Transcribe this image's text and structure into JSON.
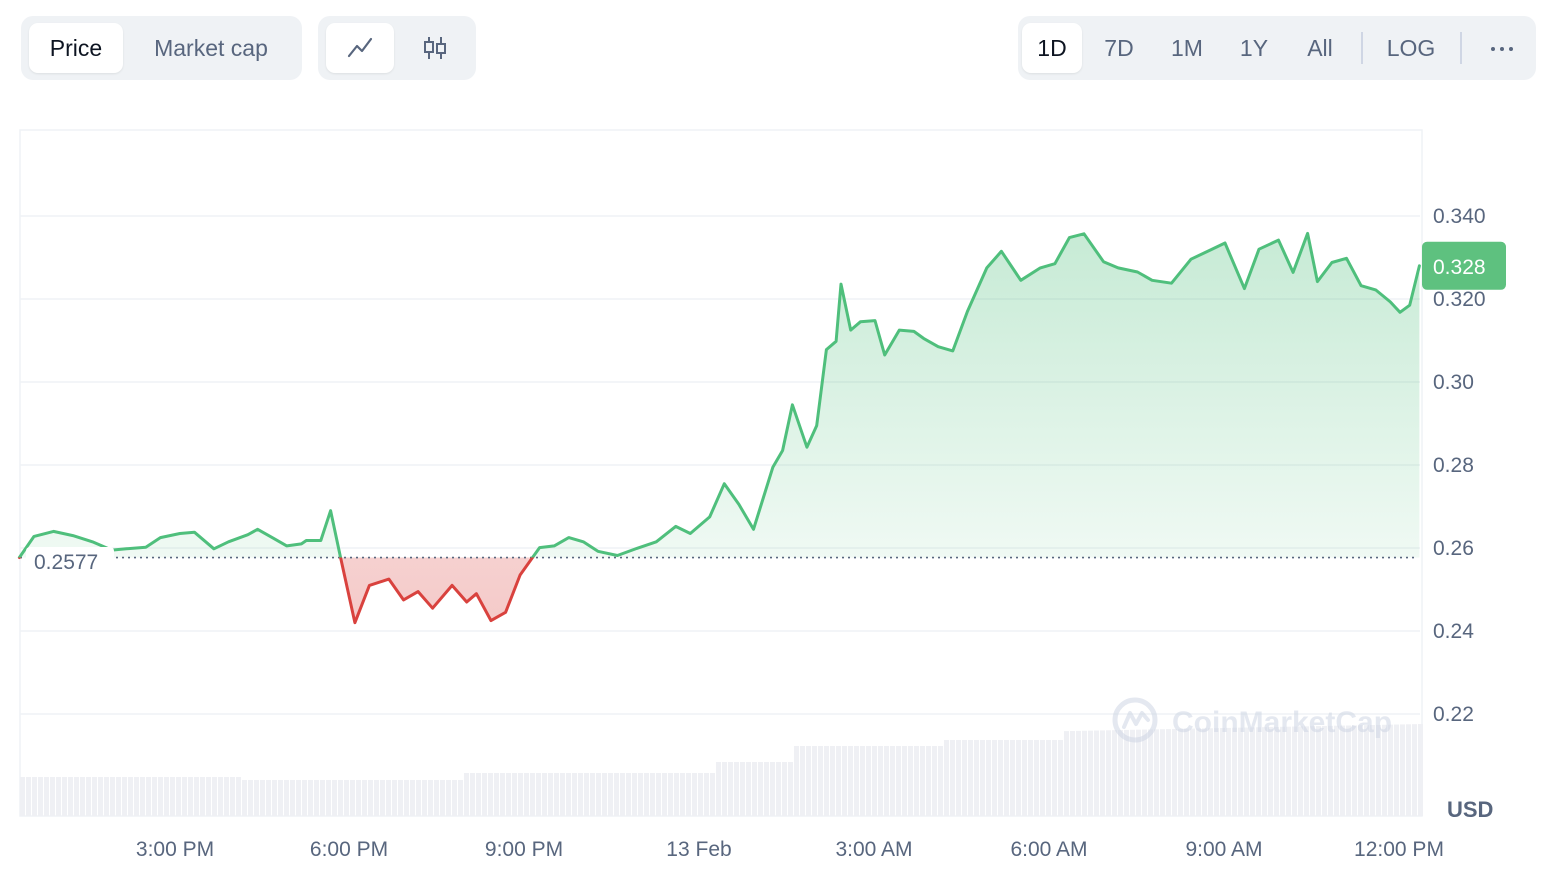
{
  "toolbar": {
    "data_tabs": [
      "Price",
      "Market cap"
    ],
    "active_data_tab": "Price",
    "chart_style_icons": [
      "line-chart-icon",
      "candlestick-icon"
    ],
    "active_chart_style": "line-chart-icon",
    "ranges": [
      "1D",
      "7D",
      "1M",
      "1Y",
      "All"
    ],
    "active_range": "1D",
    "log_label": "LOG",
    "more_icon": "more-horizontal-icon"
  },
  "watermark": "CoinMarketCap",
  "colors": {
    "up": "#4fbf7c",
    "down": "#d9423e",
    "price_badge": "#5ec17f",
    "grid": "#eff2f5",
    "volume": "#eff0f4"
  },
  "chart_data": {
    "type": "line",
    "xlabel": "",
    "ylabel": "",
    "currency": "USD",
    "x_ticks": [
      "3:00 PM",
      "6:00 PM",
      "9:00 PM",
      "13 Feb",
      "3:00 AM",
      "6:00 AM",
      "9:00 AM",
      "12:00 PM"
    ],
    "y_ticks": [
      "0.340",
      "0.320",
      "0.30",
      "0.28",
      "0.26",
      "0.24",
      "0.22"
    ],
    "ylim": [
      0.2,
      0.36
    ],
    "reference_price": 0.2577,
    "reference_label": "0.2577",
    "current_price": 0.328,
    "current_label": "0.328",
    "grid": true,
    "volume_bars": "light-grey-area-at-bottom",
    "series": [
      {
        "x": [
          "12:20 PM",
          "12:35 PM",
          "12:55 PM",
          "1:15 PM",
          "1:35 PM",
          "1:55 PM",
          "2:10 PM",
          "2:30 PM",
          "2:45 PM",
          "3:05 PM",
          "3:20 PM",
          "3:40 PM",
          "3:55 PM",
          "4:15 PM",
          "4:25 PM",
          "4:40 PM",
          "4:55 PM",
          "5:10 PM",
          "5:15 PM",
          "5:30 PM",
          "5:40 PM",
          "5:50 PM",
          "6:05 PM",
          "6:20 PM",
          "6:40 PM",
          "6:55 PM",
          "7:10 PM",
          "7:25 PM",
          "7:45 PM",
          "8:00 PM",
          "8:10 PM",
          "8:25 PM",
          "8:40 PM",
          "8:55 PM",
          "9:15 PM",
          "9:30 PM",
          "9:45 PM",
          "10:00 PM",
          "10:15 PM",
          "10:35 PM",
          "10:55 PM",
          "11:15 PM",
          "11:35 PM",
          "11:50 PM",
          "12:10 AM",
          "12:25 AM",
          "12:40 AM",
          "12:55 AM",
          "1:15 AM",
          "1:25 AM",
          "1:35 AM",
          "1:50 AM",
          "2:00 AM",
          "2:10 AM",
          "2:20 AM",
          "2:25 AM",
          "2:35 AM",
          "2:45 AM",
          "3:00 AM",
          "3:10 AM",
          "3:25 AM",
          "3:40 AM",
          "3:50 AM",
          "4:05 AM",
          "4:20 AM",
          "4:35 AM",
          "4:55 AM",
          "5:10 AM",
          "5:30 AM",
          "5:50 AM",
          "6:05 AM",
          "6:20 AM",
          "6:35 AM",
          "6:55 AM",
          "7:10 AM",
          "7:30 AM",
          "7:45 AM",
          "8:05 AM",
          "8:25 AM",
          "8:45 AM",
          "9:00 AM",
          "9:20 AM",
          "9:35 AM",
          "9:55 AM",
          "10:10 AM",
          "10:25 AM",
          "10:35 AM",
          "10:50 AM",
          "11:05 AM",
          "11:20 AM",
          "11:35 AM",
          "11:50 AM",
          "12:00 PM",
          "12:10 PM",
          "12:20 PM"
        ],
        "y": [
          0.2577,
          0.2628,
          0.264,
          0.263,
          0.2615,
          0.2595,
          0.2598,
          0.2602,
          0.2625,
          0.2635,
          0.2638,
          0.2598,
          0.2615,
          0.2632,
          0.2645,
          0.2625,
          0.2605,
          0.261,
          0.2618,
          0.2618,
          0.269,
          0.258,
          0.242,
          0.251,
          0.2525,
          0.2475,
          0.2495,
          0.2455,
          0.251,
          0.247,
          0.249,
          0.2425,
          0.2445,
          0.2535,
          0.2601,
          0.2605,
          0.2625,
          0.2615,
          0.2592,
          0.2582,
          0.2599,
          0.2615,
          0.2652,
          0.2635,
          0.2675,
          0.2755,
          0.2705,
          0.2645,
          0.2795,
          0.2835,
          0.2945,
          0.2843,
          0.2895,
          0.3078,
          0.3098,
          0.3236,
          0.3125,
          0.3145,
          0.3148,
          0.3065,
          0.3125,
          0.3122,
          0.3105,
          0.3085,
          0.3075,
          0.317,
          0.3275,
          0.3315,
          0.3245,
          0.3275,
          0.3285,
          0.3348,
          0.3357,
          0.329,
          0.3275,
          0.3265,
          0.3245,
          0.3238,
          0.3296,
          0.3318,
          0.3335,
          0.3225,
          0.332,
          0.3342,
          0.3264,
          0.3358,
          0.3242,
          0.3288,
          0.3298,
          0.3232,
          0.3222,
          0.3193,
          0.3168,
          0.3185,
          0.328
        ]
      }
    ]
  }
}
